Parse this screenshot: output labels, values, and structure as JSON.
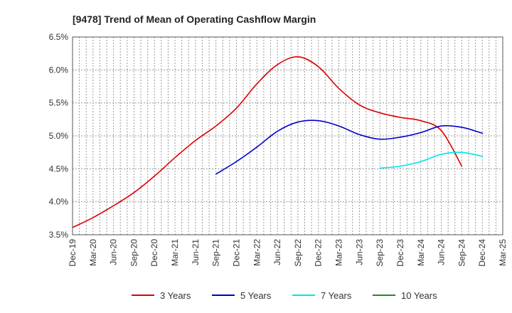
{
  "chart_data": {
    "type": "line",
    "title": "[9478]  Trend of Mean of Operating Cashflow Margin",
    "xlabel": "",
    "ylabel": "",
    "ylim": [
      3.5,
      6.5
    ],
    "yticks": [
      3.5,
      4.0,
      4.5,
      5.0,
      5.5,
      6.0,
      6.5
    ],
    "ytick_labels": [
      "3.5%",
      "4.0%",
      "4.5%",
      "5.0%",
      "5.5%",
      "6.0%",
      "6.5%"
    ],
    "x_categories": [
      "Dec-19",
      "Mar-20",
      "Jun-20",
      "Sep-20",
      "Dec-20",
      "Mar-21",
      "Jun-21",
      "Sep-21",
      "Dec-21",
      "Mar-22",
      "Jun-22",
      "Sep-22",
      "Dec-22",
      "Mar-23",
      "Jun-23",
      "Sep-23",
      "Dec-23",
      "Mar-24",
      "Jun-24",
      "Sep-24",
      "Dec-24",
      "Mar-25"
    ],
    "grid": true,
    "legend_position": "bottom",
    "series": [
      {
        "name": "3 Years",
        "color": "#dd0000",
        "start": "Dec-19",
        "values": [
          3.61,
          3.76,
          3.94,
          4.14,
          4.39,
          4.67,
          4.93,
          5.15,
          5.42,
          5.79,
          6.08,
          6.2,
          6.05,
          5.72,
          5.47,
          5.35,
          5.28,
          5.23,
          5.08,
          4.54
        ]
      },
      {
        "name": "5 Years",
        "color": "#0000cc",
        "start": "Sep-21",
        "values": [
          4.42,
          4.61,
          4.83,
          5.07,
          5.21,
          5.23,
          5.15,
          5.02,
          4.95,
          4.98,
          5.05,
          5.15,
          5.13,
          5.04
        ]
      },
      {
        "name": "7 Years",
        "color": "#00e5ee",
        "start": "Sep-23",
        "values": [
          4.51,
          4.54,
          4.61,
          4.72,
          4.75,
          4.69
        ]
      },
      {
        "name": "10 Years",
        "color": "#228b22",
        "start": "Sep-24",
        "values": []
      }
    ]
  }
}
